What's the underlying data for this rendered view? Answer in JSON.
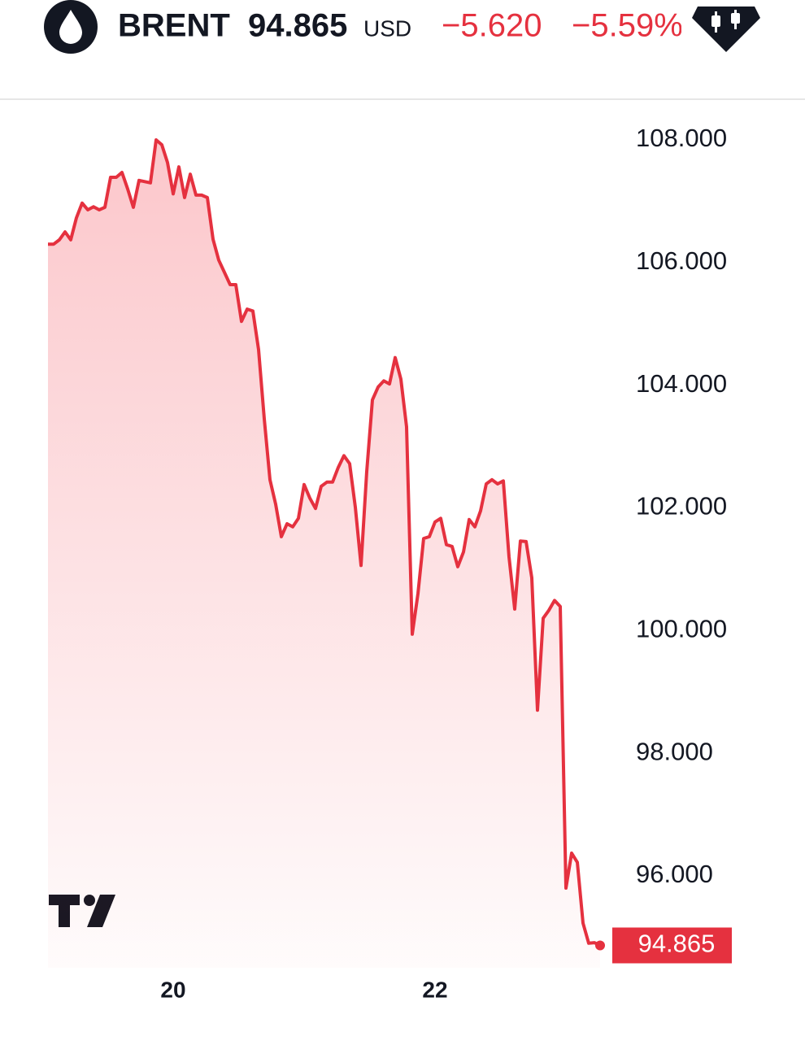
{
  "header": {
    "symbol": "BRENT",
    "price": "94.865",
    "currency": "USD",
    "change": "−5.620",
    "change_percent": "−5.59%"
  },
  "chart_data": {
    "type": "line",
    "color": "#e5313f",
    "grid": false,
    "categories": [
      null,
      null,
      null,
      null,
      null,
      null,
      null,
      null,
      null,
      null,
      null,
      null,
      null,
      null,
      null,
      null,
      null,
      null,
      null,
      null,
      null,
      null,
      "20",
      null,
      null,
      null,
      null,
      null,
      null,
      null,
      null,
      null,
      null,
      null,
      null,
      null,
      null,
      null,
      null,
      null,
      null,
      null,
      null,
      null,
      null,
      null,
      null,
      null,
      null,
      null,
      null,
      null,
      null,
      null,
      null,
      null,
      null,
      null,
      null,
      null,
      null,
      null,
      null,
      null,
      null,
      null,
      null,
      null,
      "22",
      null,
      null,
      null,
      null,
      null,
      null,
      null,
      null,
      null,
      null,
      null,
      null,
      null,
      null,
      null,
      null,
      null,
      null,
      null,
      null,
      null,
      null,
      null,
      null,
      null,
      null,
      null,
      null,
      null
    ],
    "values": [
      106.3,
      106.3,
      106.37,
      106.5,
      106.37,
      106.73,
      106.97,
      106.86,
      106.91,
      106.86,
      106.9,
      107.39,
      107.39,
      107.47,
      107.2,
      106.9,
      107.34,
      107.32,
      107.3,
      108.0,
      107.92,
      107.63,
      107.12,
      107.56,
      107.06,
      107.44,
      107.1,
      107.1,
      107.06,
      106.38,
      106.04,
      105.84,
      105.64,
      105.64,
      105.04,
      105.24,
      105.21,
      104.58,
      103.45,
      102.46,
      102.06,
      101.53,
      101.74,
      101.69,
      101.83,
      102.38,
      102.16,
      101.99,
      102.35,
      102.42,
      102.42,
      102.66,
      102.85,
      102.72,
      102.01,
      101.06,
      102.59,
      103.76,
      103.97,
      104.07,
      104.02,
      104.45,
      104.1,
      103.32,
      99.94,
      100.6,
      101.5,
      101.53,
      101.77,
      101.83,
      101.4,
      101.37,
      101.04,
      101.28,
      101.81,
      101.69,
      101.95,
      102.39,
      102.46,
      102.39,
      102.44,
      101.2,
      100.35,
      101.46,
      101.45,
      100.86,
      98.7,
      100.2,
      100.33,
      100.49,
      100.39,
      95.8,
      96.37,
      96.22,
      95.23,
      94.9,
      94.91,
      94.865
    ],
    "ylim": [
      94.5,
      108.6
    ],
    "yticks": [
      {
        "value": 96,
        "label": "96.000"
      },
      {
        "value": 98,
        "label": "98.000"
      },
      {
        "value": 100,
        "label": "100.000"
      },
      {
        "value": 102,
        "label": "102.000"
      },
      {
        "value": 104,
        "label": "104.000"
      },
      {
        "value": 106,
        "label": "106.000"
      },
      {
        "value": 108,
        "label": "108.000"
      }
    ],
    "price_label": {
      "value": 94.865,
      "label": "94.865"
    }
  }
}
